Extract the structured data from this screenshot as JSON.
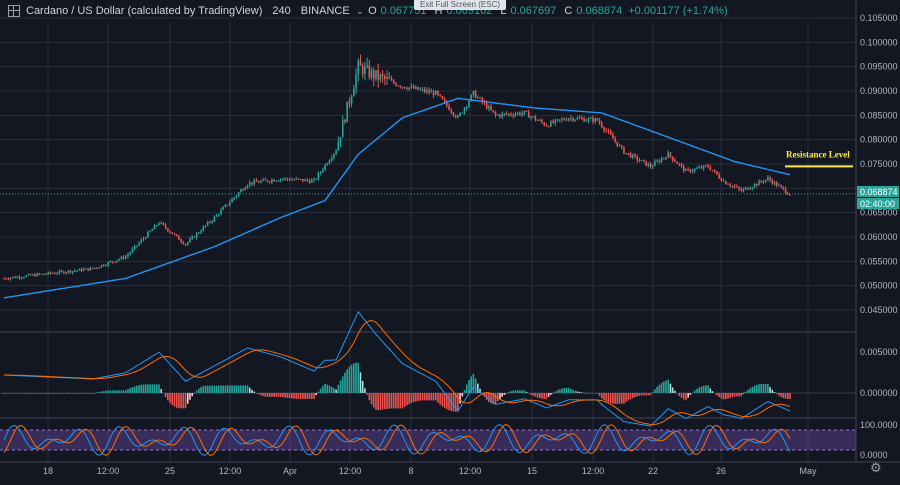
{
  "header": {
    "symbol": "Cardano / US Dollar (calculated by TradingView)",
    "interval": "240",
    "exchange": "BINANCE",
    "o_label": "O",
    "o_value": "0.067751",
    "h_label": "H",
    "h_value": "0.069162",
    "l_label": "L",
    "l_value": "0.067697",
    "c_label": "C",
    "c_value": "0.068874",
    "change": "+0.001177 (+1.74%)",
    "exit_fullscreen": "Exit Full Screen (ESC)"
  },
  "colors": {
    "background": "#131722",
    "grid": "#2a2e39",
    "up": "#26a69a",
    "down": "#ef5350",
    "ma": "#2196f3",
    "macd_signal": "#ff6d00",
    "resistance": "#ffeb3b",
    "rsi_band": "#7e57c2"
  },
  "chart_data": {
    "type": "candlestick",
    "price_axis": [
      "0.105000",
      "0.100000",
      "0.095000",
      "0.090000",
      "0.085000",
      "0.080000",
      "0.075000",
      "0.070000",
      "0.065000",
      "0.060000",
      "0.055000",
      "0.050000",
      "0.045000"
    ],
    "last_price": "0.068874",
    "countdown": "02:40:00",
    "price_anchors": [
      [
        0,
        0.0515
      ],
      [
        20,
        0.0525
      ],
      [
        40,
        0.0535
      ],
      [
        55,
        0.056
      ],
      [
        70,
        0.063
      ],
      [
        82,
        0.0585
      ],
      [
        95,
        0.064
      ],
      [
        110,
        0.071
      ],
      [
        125,
        0.072
      ],
      [
        140,
        0.0715
      ],
      [
        150,
        0.078
      ],
      [
        160,
        0.095
      ],
      [
        168,
        0.093
      ],
      [
        180,
        0.091
      ],
      [
        195,
        0.0895
      ],
      [
        205,
        0.0845
      ],
      [
        212,
        0.0895
      ],
      [
        222,
        0.085
      ],
      [
        235,
        0.0855
      ],
      [
        245,
        0.083
      ],
      [
        255,
        0.0845
      ],
      [
        268,
        0.084
      ],
      [
        280,
        0.0775
      ],
      [
        292,
        0.0745
      ],
      [
        300,
        0.077
      ],
      [
        308,
        0.0735
      ],
      [
        318,
        0.0745
      ],
      [
        325,
        0.0715
      ],
      [
        333,
        0.0695
      ],
      [
        345,
        0.072
      ],
      [
        355,
        0.0688
      ]
    ],
    "ma_anchors": [
      [
        0,
        0.0475
      ],
      [
        55,
        0.0515
      ],
      [
        95,
        0.058
      ],
      [
        125,
        0.064
      ],
      [
        145,
        0.0675
      ],
      [
        160,
        0.077
      ],
      [
        180,
        0.0845
      ],
      [
        205,
        0.0885
      ],
      [
        240,
        0.0865
      ],
      [
        270,
        0.0855
      ],
      [
        300,
        0.0805
      ],
      [
        330,
        0.0755
      ],
      [
        355,
        0.0728
      ]
    ],
    "resistance": {
      "label": "Resistance Level",
      "price": 0.0745
    },
    "macd_axis": [
      "0.005000",
      "0.000000"
    ],
    "rsi_axis": [
      "100.0000",
      "0.0000"
    ],
    "time_labels": [
      "18",
      "12:00",
      "25",
      "12:00",
      "Apr",
      "12:00",
      "8",
      "12:00",
      "15",
      "12:00",
      "22",
      "26",
      "May"
    ]
  }
}
